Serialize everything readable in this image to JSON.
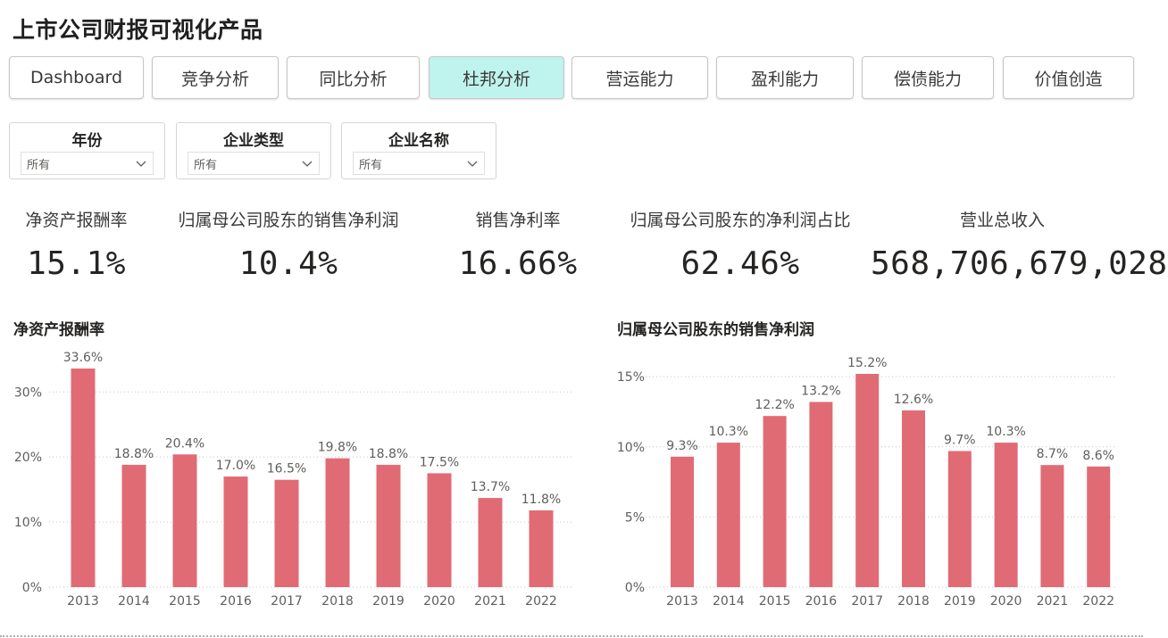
{
  "app": {
    "title": "上市公司财报可视化产品"
  },
  "nav": {
    "buttons": [
      "Dashboard",
      "竞争分析",
      "同比分析",
      "杜邦分析",
      "营运能力",
      "盈利能力",
      "偿债能力",
      "价值创造"
    ],
    "active": "杜邦分析"
  },
  "filters": [
    {
      "title": "年份",
      "value": "所有"
    },
    {
      "title": "企业类型",
      "value": "所有"
    },
    {
      "title": "企业名称",
      "value": "所有"
    }
  ],
  "kpis": [
    {
      "label": "净资产报酬率",
      "value": "15.1%"
    },
    {
      "label": "归属母公司股东的销售净利润",
      "value": "10.4%"
    },
    {
      "label": "销售净利率",
      "value": "16.66%"
    },
    {
      "label": "归属母公司股东的净利润占比",
      "value": "62.46%"
    },
    {
      "label": "营业总收入",
      "value": "568,706,679,028"
    }
  ],
  "colors": {
    "bar": "#e06b75",
    "active_tab": "#bff3ee",
    "gridline": "#c8c6c4",
    "axis_text": "#605e5c"
  },
  "chart_data": [
    {
      "type": "bar",
      "title": "净资产报酬率",
      "categories": [
        "2013",
        "2014",
        "2015",
        "2016",
        "2017",
        "2018",
        "2019",
        "2020",
        "2021",
        "2022"
      ],
      "values": [
        33.6,
        18.8,
        20.4,
        17.0,
        16.5,
        19.8,
        18.8,
        17.5,
        13.7,
        11.8
      ],
      "value_labels": [
        "33.6%",
        "18.8%",
        "20.4%",
        "17.0%",
        "16.5%",
        "19.8%",
        "18.8%",
        "17.5%",
        "13.7%",
        "11.8%"
      ],
      "yticks": [
        "0%",
        "10%",
        "20%",
        "30%"
      ],
      "ytick_values": [
        0,
        10,
        20,
        30
      ],
      "ylim": [
        0,
        33.6
      ],
      "xlabel": "",
      "ylabel": "",
      "grid": true
    },
    {
      "type": "bar",
      "title": "归属母公司股东的销售净利润",
      "categories": [
        "2013",
        "2014",
        "2015",
        "2016",
        "2017",
        "2018",
        "2019",
        "2020",
        "2021",
        "2022"
      ],
      "values": [
        9.3,
        10.3,
        12.2,
        13.2,
        15.2,
        12.6,
        9.7,
        10.3,
        8.7,
        8.6
      ],
      "value_labels": [
        "9.3%",
        "10.3%",
        "12.2%",
        "13.2%",
        "15.2%",
        "12.6%",
        "9.7%",
        "10.3%",
        "8.7%",
        "8.6%"
      ],
      "yticks": [
        "0%",
        "5%",
        "10%",
        "15%"
      ],
      "ytick_values": [
        0,
        5,
        10,
        15
      ],
      "ylim": [
        0,
        15.2
      ],
      "xlabel": "",
      "ylabel": "",
      "grid": true
    }
  ]
}
